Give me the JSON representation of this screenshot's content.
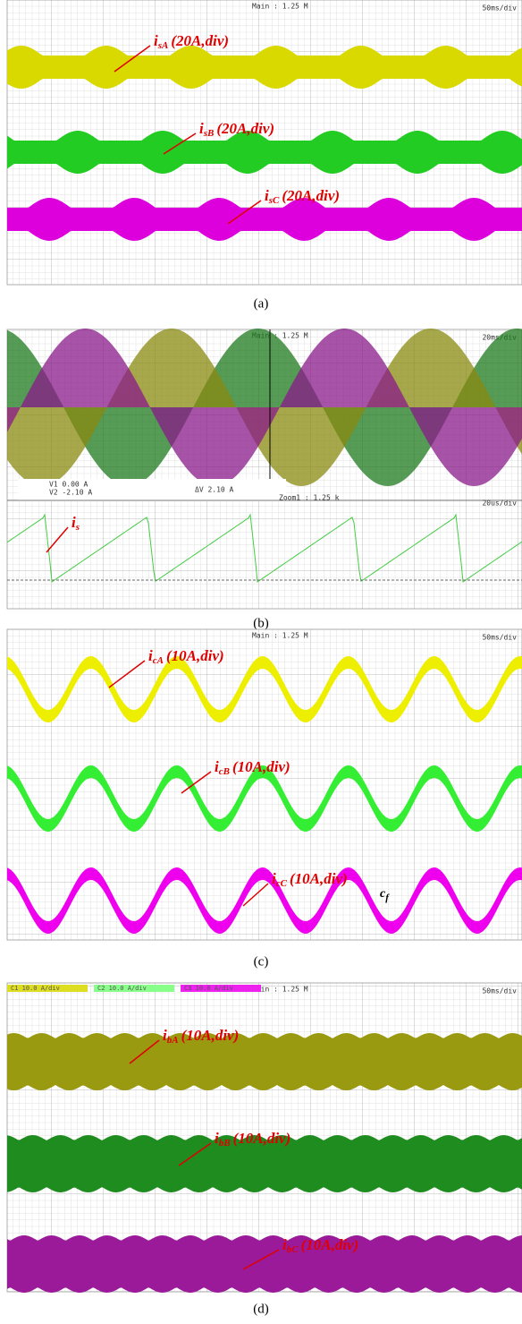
{
  "panels": [
    {
      "caption": "(a)",
      "header": {
        "left": "Main : 1.25 M",
        "right": "50ms/div"
      },
      "labels": [
        {
          "symbol": "i",
          "sub": "sA",
          "text": "(20A,div)"
        },
        {
          "symbol": "i",
          "sub": "sB",
          "text": "(20A,div)"
        },
        {
          "symbol": "i",
          "sub": "sC",
          "text": "(20A,div)"
        }
      ]
    },
    {
      "caption": "(b)",
      "header": {
        "left": "Main : 1.25 M",
        "right": "20ms/div"
      },
      "cursor": [
        "V1  0.00 A",
        "V2 -2.10 A"
      ],
      "delta": "ΔV  2.10 A",
      "zoom": {
        "left": "Zoom1 : 1.25 k",
        "right": "20us/div"
      },
      "labels": [
        {
          "symbol": "i",
          "sub": "s"
        }
      ]
    },
    {
      "caption": "(c)",
      "header": {
        "left": "Main : 1.25 M",
        "right": "50ms/div"
      },
      "labels": [
        {
          "symbol": "i",
          "sub": "cA",
          "text": "(10A,div)"
        },
        {
          "symbol": "i",
          "sub": "cB",
          "text": "(10A,div)"
        },
        {
          "symbol": "i",
          "sub": "cC",
          "text": "(10A,div)"
        }
      ],
      "note": {
        "symbol": "c",
        "sub": "f"
      }
    },
    {
      "caption": "(d)",
      "header": {
        "left": "Main : 1.25 M",
        "right": "50ms/div"
      },
      "legend": [
        "C1 10.0 A/div",
        "C2 10.0 A/div",
        "C3 10.0 A/div"
      ],
      "labels": [
        {
          "symbol": "i",
          "sub": "bA",
          "text": "(10A,div)"
        },
        {
          "symbol": "i",
          "sub": "bB",
          "text": "(10A,div)"
        },
        {
          "symbol": "i",
          "sub": "bC",
          "text": "(10A,div)"
        }
      ]
    }
  ]
}
